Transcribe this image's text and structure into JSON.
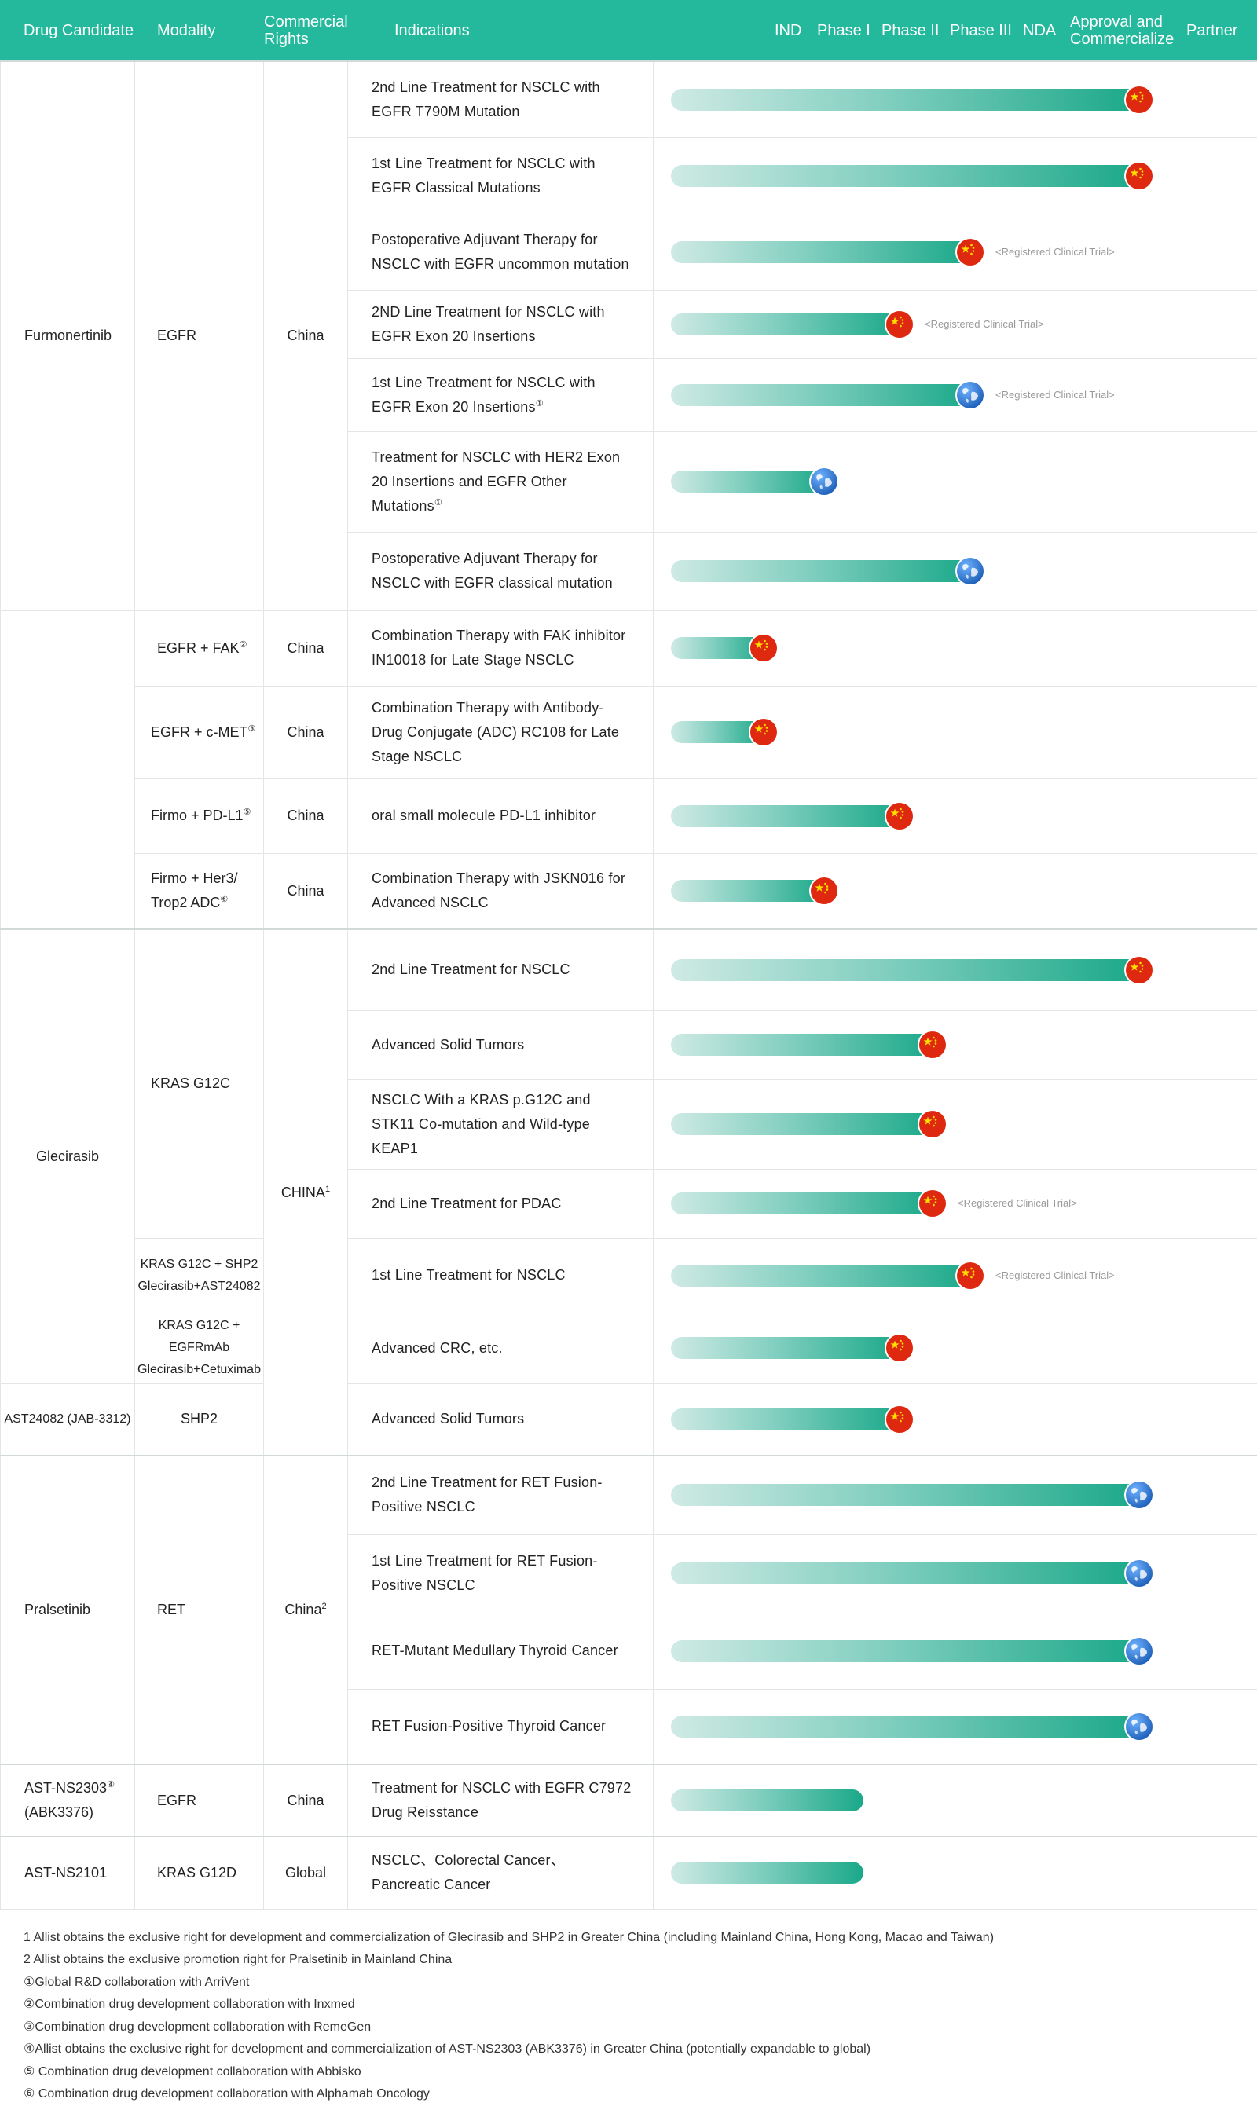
{
  "header": {
    "columns": [
      "Drug Candidate",
      "Modality",
      "Commercial\nRights",
      "Indications",
      "IND",
      "Phase I",
      "Phase II",
      "Phase III",
      "NDA",
      "Approval and\nCommercialize",
      "Partner"
    ]
  },
  "rows": [
    {
      "drug": "Furmonertinib",
      "modality": "EGFR",
      "modality_sup": "",
      "rights": "China",
      "rights_sup": "",
      "indication": "2nd Line Treatment for NSCLC with EGFR T790M Mutation",
      "ind_sup": "",
      "progress": 1.0,
      "flag": "china-flag",
      "note": ""
    },
    {
      "indication": "1st Line Treatment for NSCLC with EGFR Classical Mutations",
      "ind_sup": "",
      "progress": 1.0,
      "flag": "china-flag",
      "note": ""
    },
    {
      "indication": "Postoperative Adjuvant Therapy for NSCLC with EGFR uncommon mutation",
      "ind_sup": "",
      "progress": 0.64,
      "flag": "china-flag",
      "note": "<Registered Clinical Trial>"
    },
    {
      "indication": "2ND Line Treatment for NSCLC with EGFR Exon 20 Insertions",
      "ind_sup": "",
      "progress": 0.49,
      "flag": "china-flag",
      "note": "<Registered Clinical Trial>"
    },
    {
      "indication": "1st Line Treatment for NSCLC with EGFR Exon 20 Insertions",
      "ind_sup": "①",
      "progress": 0.64,
      "flag": "globe",
      "note": "<Registered Clinical Trial>"
    },
    {
      "indication": "Treatment for NSCLC with HER2 Exon 20 Insertions and EGFR Other Mutations",
      "ind_sup": "①",
      "progress": 0.33,
      "flag": "globe",
      "note": ""
    },
    {
      "indication": "Postoperative Adjuvant Therapy for NSCLC with EGFR classical mutation",
      "ind_sup": "",
      "progress": 0.64,
      "flag": "globe",
      "note": ""
    },
    {
      "modality": "EGFR + FAK",
      "modality_sup": "②",
      "rights": "China",
      "rights_sup": "",
      "indication": "Combination Therapy with FAK inhibitor IN10018 for Late Stage NSCLC",
      "ind_sup": "",
      "progress": 0.2,
      "flag": "china-flag",
      "note": ""
    },
    {
      "modality": "EGFR + c-MET",
      "modality_sup": "③",
      "rights": "China",
      "rights_sup": "",
      "indication": "Combination Therapy with Antibody-Drug Conjugate (ADC) RC108 for Late Stage NSCLC",
      "ind_sup": "",
      "progress": 0.2,
      "flag": "china-flag",
      "note": ""
    },
    {
      "modality": "Firmo + PD-L1",
      "modality_sup": "⑤",
      "rights": "China",
      "rights_sup": "",
      "indication": "oral small molecule PD-L1 inhibitor",
      "ind_sup": "",
      "progress": 0.49,
      "flag": "china-flag",
      "note": ""
    },
    {
      "modality": "Firmo + Her3/ Trop2 ADC",
      "modality_sup": "⑥",
      "rights": "China",
      "rights_sup": "",
      "indication": "Combination Therapy with JSKN016 for Advanced NSCLC",
      "ind_sup": "",
      "progress": 0.33,
      "flag": "china-flag",
      "note": ""
    },
    {
      "drug": "Glecirasib",
      "modality": "KRAS G12C",
      "modality_sup": "",
      "rights": "CHINA",
      "rights_sup": "1",
      "indication": "2nd Line Treatment for NSCLC",
      "ind_sup": "",
      "progress": 1.0,
      "flag": "china-flag",
      "note": ""
    },
    {
      "indication": "Advanced Solid Tumors",
      "ind_sup": "",
      "progress": 0.56,
      "flag": "china-flag",
      "note": ""
    },
    {
      "indication": "NSCLC With a KRAS p.G12C and STK11 Co-mutation and Wild-type KEAP1",
      "ind_sup": "",
      "progress": 0.56,
      "flag": "china-flag",
      "note": ""
    },
    {
      "indication": "2nd Line Treatment for PDAC",
      "ind_sup": "",
      "progress": 0.56,
      "flag": "china-flag",
      "note": "<Registered Clinical Trial>"
    },
    {
      "modality": "KRAS G12C + SHP2 Glecirasib+AST24082",
      "modality_sup": "",
      "indication": "1st Line Treatment for NSCLC",
      "ind_sup": "",
      "progress": 0.64,
      "flag": "china-flag",
      "note": "<Registered Clinical Trial>"
    },
    {
      "modality": "KRAS G12C + EGFRmAb Glecirasib+Cetuximab",
      "modality_sup": "",
      "indication": "Advanced CRC, etc.",
      "ind_sup": "",
      "progress": 0.49,
      "flag": "china-flag",
      "note": ""
    },
    {
      "drug": "AST24082 (JAB-3312)",
      "modality": "SHP2",
      "modality_sup": "",
      "indication": "Advanced Solid Tumors",
      "ind_sup": "",
      "progress": 0.49,
      "flag": "china-flag",
      "note": ""
    },
    {
      "drug": "Pralsetinib",
      "modality": "RET",
      "modality_sup": "",
      "rights": "China",
      "rights_sup": "2",
      "indication": "2nd Line Treatment for RET Fusion-Positive NSCLC",
      "ind_sup": "",
      "progress": 1.0,
      "flag": "globe",
      "note": ""
    },
    {
      "indication": "1st Line Treatment for RET Fusion-Positive NSCLC",
      "ind_sup": "",
      "progress": 1.0,
      "flag": "globe",
      "note": ""
    },
    {
      "indication": "RET-Mutant Medullary Thyroid Cancer",
      "ind_sup": "",
      "progress": 1.0,
      "flag": "globe",
      "note": ""
    },
    {
      "indication": "RET Fusion-Positive Thyroid Cancer",
      "ind_sup": "",
      "progress": 1.0,
      "flag": "globe",
      "note": ""
    },
    {
      "drug": "AST-NS2303",
      "drug_sup": "④",
      "drug_line2": "(ABK3376)",
      "modality": "EGFR",
      "modality_sup": "",
      "rights": "China",
      "rights_sup": "",
      "indication": "Treatment for NSCLC with EGFR C7972 Drug Reisstance",
      "ind_sup": "",
      "progress": 0.41,
      "flag": "",
      "note": ""
    },
    {
      "drug": "AST-NS2101",
      "modality": "KRAS G12D",
      "modality_sup": "",
      "rights": "Global",
      "rights_sup": "",
      "indication": "NSCLC、Colorectal Cancer、Pancreatic Cancer",
      "ind_sup": "",
      "progress": 0.41,
      "flag": "",
      "note": ""
    }
  ],
  "footnotes": [
    "1 Allist obtains the exclusive right for development and commercialization of Glecirasib and SHP2 in Greater China (including Mainland China, Hong Kong, Macao and Taiwan)",
    "2 Allist obtains the exclusive promotion right for Pralsetinib in Mainland China",
    "①Global R&D collaboration with ArriVent",
    "②Combination drug development collaboration with Inxmed",
    "③Combination drug development collaboration with RemeGen",
    "④Allist obtains the exclusive right for development and commercialization of AST-NS2303 (ABK3376) in Greater China (potentially expandable to global)",
    "⑤ Combination drug development collaboration with Abbisko",
    "⑥ Combination drug development collaboration with Alphamab Oncology"
  ],
  "colors": {
    "header_bg": "#24b89d",
    "bar_end": "#1aa889",
    "bar_start": "#cfeae4",
    "china_red": "#de2910",
    "china_star": "#ffde00",
    "globe_blue": "#1d5fb8"
  }
}
